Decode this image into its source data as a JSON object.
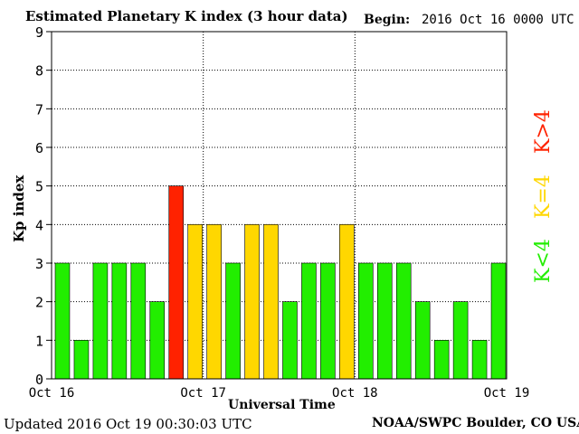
{
  "header": {
    "title": "Estimated Planetary K index (3 hour data)",
    "begin_label": "Begin:",
    "begin_value": "2016 Oct 16 0000 UTC"
  },
  "footer": {
    "updated": "Updated 2016 Oct 19 00:30:03 UTC",
    "credit": "NOAA/SWPC Boulder, CO USA"
  },
  "legend": {
    "low": "K<4",
    "equal": "K=4",
    "high": "K>4"
  },
  "colors": {
    "low": "#22ee00",
    "equal": "#ffd700",
    "high": "#ff2200"
  },
  "chart_data": {
    "type": "bar",
    "xlabel": "Universal Time",
    "ylabel": "Kp index",
    "ylim": [
      0,
      9
    ],
    "yticks": [
      "0",
      "1",
      "2",
      "3",
      "4",
      "5",
      "6",
      "7",
      "8",
      "9"
    ],
    "xticks": [
      "Oct 16",
      "Oct 17",
      "Oct 18",
      "Oct 19"
    ],
    "grid": true,
    "values": [
      3,
      1,
      3,
      3,
      3,
      2,
      5,
      4,
      4,
      3,
      4,
      4,
      2,
      3,
      3,
      4,
      3,
      3,
      3,
      2,
      1,
      2,
      1,
      3
    ]
  }
}
